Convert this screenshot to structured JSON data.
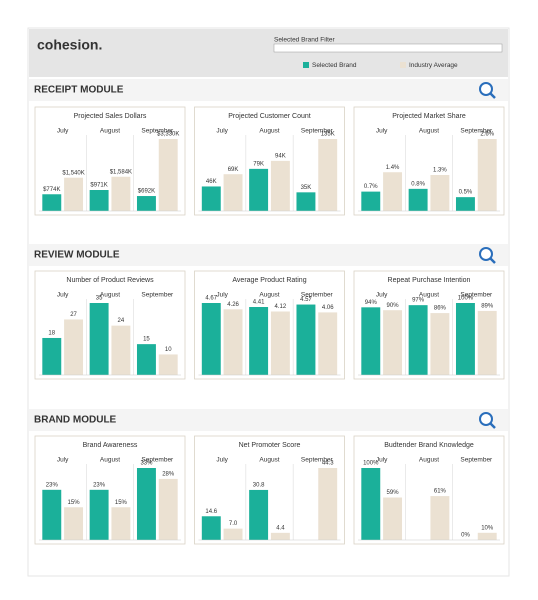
{
  "header": {
    "logo": "cohesion.",
    "filter_label": "Selected Brand Filter"
  },
  "modules": [
    "RECEIPT MODULE",
    "REVIEW MODULE",
    "BRAND MODULE"
  ],
  "chart_data": [
    {
      "type": "bar",
      "title": "Projected Sales Dollars",
      "categories": [
        "July",
        "August",
        "September"
      ],
      "series": [
        {
          "name": "Selected Brand",
          "color": "#1bb09a",
          "values": [
            774000,
            971000,
            692000
          ],
          "value_labels": [
            "$774K",
            "$971K",
            "$692K"
          ]
        },
        {
          "name": "Industry Average",
          "color": "#ebe1d2",
          "values": [
            1540000,
            1584000,
            3330000
          ],
          "value_labels": [
            "$1,540K",
            "$1,584K",
            "$3,330K"
          ]
        }
      ]
    },
    {
      "type": "bar",
      "title": "Projected Customer Count",
      "categories": [
        "July",
        "August",
        "September"
      ],
      "series": [
        {
          "name": "Selected Brand",
          "color": "#1bb09a",
          "values": [
            46000,
            79000,
            35000
          ],
          "value_labels": [
            "46K",
            "79K",
            "35K"
          ]
        },
        {
          "name": "Industry Average",
          "color": "#ebe1d2",
          "values": [
            69000,
            94000,
            135000
          ],
          "value_labels": [
            "69K",
            "94K",
            "135K"
          ]
        }
      ]
    },
    {
      "type": "bar",
      "title": "Projected Market Share",
      "categories": [
        "July",
        "August",
        "September"
      ],
      "series": [
        {
          "name": "Selected Brand",
          "color": "#1bb09a",
          "values": [
            0.7,
            0.8,
            0.5
          ],
          "value_labels": [
            "0.7%",
            "0.8%",
            "0.5%"
          ]
        },
        {
          "name": "Industry Average",
          "color": "#ebe1d2",
          "values": [
            1.4,
            1.3,
            2.6
          ],
          "value_labels": [
            "1.4%",
            "1.3%",
            "2.6%"
          ]
        }
      ]
    },
    {
      "type": "bar",
      "title": "Number of Product Reviews",
      "categories": [
        "July",
        "August",
        "September"
      ],
      "series": [
        {
          "name": "Selected Brand",
          "color": "#1bb09a",
          "values": [
            18,
            35,
            15
          ]
        },
        {
          "name": "Industry Average",
          "color": "#ebe1d2",
          "values": [
            27,
            24,
            10
          ]
        }
      ]
    },
    {
      "type": "bar",
      "title": "Average Product Rating",
      "categories": [
        "July",
        "August",
        "September"
      ],
      "series": [
        {
          "name": "Selected Brand",
          "color": "#1bb09a",
          "values": [
            4.67,
            4.41,
            4.57
          ]
        },
        {
          "name": "Industry Average",
          "color": "#ebe1d2",
          "values": [
            4.26,
            4.12,
            4.06
          ]
        }
      ]
    },
    {
      "type": "bar",
      "title": "Repeat Purchase Intention",
      "categories": [
        "July",
        "August",
        "September"
      ],
      "series": [
        {
          "name": "Selected Brand",
          "color": "#1bb09a",
          "values": [
            94,
            97,
            100
          ],
          "value_labels": [
            "94%",
            "97%",
            "100%"
          ]
        },
        {
          "name": "Industry Average",
          "color": "#ebe1d2",
          "values": [
            90,
            86,
            89
          ],
          "value_labels": [
            "90%",
            "86%",
            "89%"
          ]
        }
      ]
    },
    {
      "type": "bar",
      "title": "Brand Awareness",
      "categories": [
        "July",
        "August",
        "September"
      ],
      "series": [
        {
          "name": "Selected Brand",
          "color": "#1bb09a",
          "values": [
            23,
            23,
            33
          ],
          "value_labels": [
            "23%",
            "23%",
            "33%"
          ]
        },
        {
          "name": "Industry Average",
          "color": "#ebe1d2",
          "values": [
            15,
            15,
            28
          ],
          "value_labels": [
            "15%",
            "15%",
            "28%"
          ]
        }
      ]
    },
    {
      "type": "bar",
      "title": "Net Promoter Score",
      "categories": [
        "July",
        "August",
        "September"
      ],
      "series": [
        {
          "name": "Selected Brand",
          "color": "#1bb09a",
          "values": [
            14.6,
            30.8,
            null
          ],
          "value_labels": [
            "14.6",
            "30.8",
            null
          ]
        },
        {
          "name": "Industry Average",
          "color": "#ebe1d2",
          "values": [
            7,
            4.4,
            44.3
          ],
          "value_labels": [
            "7.0",
            "4.4",
            "44.3"
          ]
        }
      ]
    },
    {
      "type": "bar",
      "title": "Budtender Brand Knowledge",
      "categories": [
        "July",
        "August",
        "September"
      ],
      "series": [
        {
          "name": "Selected Brand",
          "color": "#1bb09a",
          "values": [
            100,
            null,
            0
          ],
          "value_labels": [
            "100%",
            null,
            "0%"
          ]
        },
        {
          "name": "Industry Average",
          "color": "#ebe1d2",
          "values": [
            59,
            61,
            10
          ],
          "value_labels": [
            "59%",
            "61%",
            "10%"
          ]
        }
      ]
    }
  ]
}
